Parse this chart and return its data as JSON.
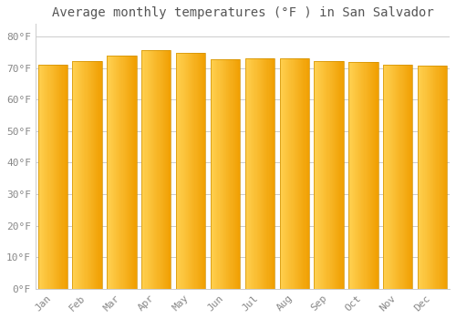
{
  "title": "Average monthly temperatures (°F ) in San Salvador",
  "months": [
    "Jan",
    "Feb",
    "Mar",
    "Apr",
    "May",
    "Jun",
    "Jul",
    "Aug",
    "Sep",
    "Oct",
    "Nov",
    "Dec"
  ],
  "values": [
    71.2,
    72.3,
    74.1,
    75.6,
    74.8,
    72.9,
    73.2,
    73.0,
    72.1,
    72.0,
    71.1,
    70.9
  ],
  "bar_color_left": "#FFD060",
  "bar_color_right": "#F0A000",
  "bar_color_mid": "#FFA820",
  "background_color": "#FFFFFF",
  "plot_bg_color": "#FFFFFF",
  "grid_color": "#CCCCCC",
  "yticks": [
    0,
    10,
    20,
    30,
    40,
    50,
    60,
    70,
    80
  ],
  "ytick_labels": [
    "0°F",
    "10°F",
    "20°F",
    "30°F",
    "40°F",
    "50°F",
    "60°F",
    "70°F",
    "80°F"
  ],
  "ylim": [
    0,
    84
  ],
  "title_fontsize": 10,
  "tick_fontsize": 8,
  "title_color": "#555555",
  "tick_color": "#888888",
  "font_family": "monospace",
  "bar_width": 0.85
}
